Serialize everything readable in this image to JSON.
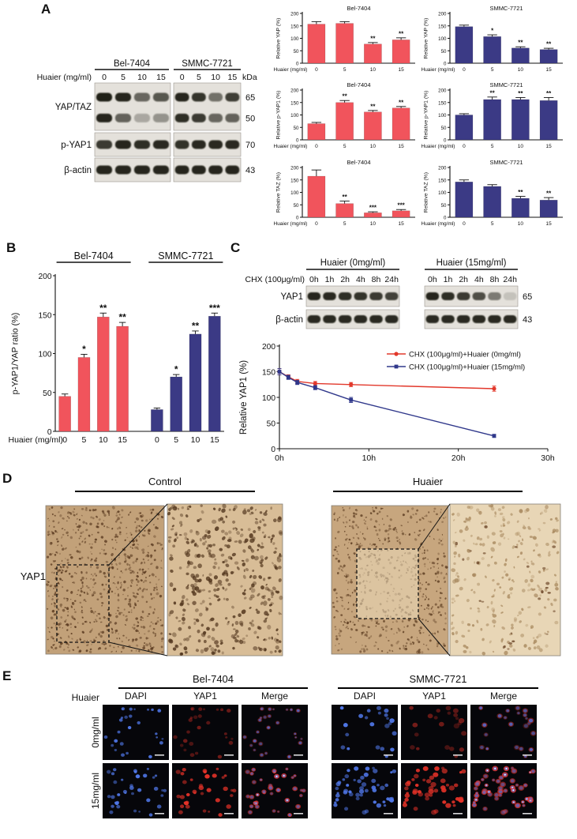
{
  "panels": {
    "a": "A",
    "b": "B",
    "c": "C",
    "d": "D",
    "e": "E"
  },
  "colors": {
    "bel_red": "#F1545C",
    "smmc_blue": "#3B3A85",
    "line_red": "#E2382B",
    "line_blue": "#30388B",
    "dapi_blue": "#5077E8",
    "yap1_red": "#E53228"
  },
  "panelA_blot": {
    "treatment_label": "Huaier (mg/ml)",
    "doses": [
      "0",
      "5",
      "10",
      "15"
    ],
    "kda_unit": "kDa",
    "groups": [
      "Bel-7404",
      "SMMC-7721"
    ],
    "rows": [
      {
        "label": "YAP/TAZ",
        "markers": [
          "65",
          "50"
        ],
        "bands": [
          {
            "g1": [
              0.95,
              0.92,
              0.6,
              0.68
            ],
            "g2": [
              0.92,
              0.85,
              0.55,
              0.8
            ]
          },
          {
            "g1": [
              0.92,
              0.62,
              0.28,
              0.38
            ],
            "g2": [
              0.88,
              0.82,
              0.6,
              0.62
            ]
          }
        ]
      },
      {
        "label": "p-YAP1",
        "markers": [
          "70"
        ],
        "bands": [
          {
            "g1": [
              0.82,
              0.92,
              0.88,
              0.9
            ],
            "g2": [
              0.86,
              0.9,
              0.9,
              0.9
            ]
          }
        ]
      },
      {
        "label": "β-actin",
        "markers": [
          "43"
        ],
        "bands": [
          {
            "g1": [
              0.92,
              0.92,
              0.92,
              0.92
            ],
            "g2": [
              0.92,
              0.92,
              0.92,
              0.92
            ]
          }
        ]
      }
    ]
  },
  "panelC_blot": {
    "chx_label": "CHX (100μg/ml)",
    "times": [
      "0h",
      "1h",
      "2h",
      "4h",
      "8h",
      "24h"
    ],
    "groups": [
      "Huaier (0mg/ml)",
      "Huaier (15mg/ml)"
    ],
    "rows": [
      {
        "label": "YAP1",
        "marker": "65",
        "g1": [
          0.92,
          0.9,
          0.88,
          0.85,
          0.82,
          0.78
        ],
        "g2": [
          0.92,
          0.88,
          0.82,
          0.72,
          0.5,
          0.15
        ]
      },
      {
        "label": "β-actin",
        "marker": "43",
        "g1": [
          0.9,
          0.9,
          0.9,
          0.9,
          0.9,
          0.9
        ],
        "g2": [
          0.9,
          0.9,
          0.9,
          0.9,
          0.9,
          0.9
        ]
      }
    ]
  },
  "panelD": {
    "col1": "Control",
    "col2": "Huaier",
    "row_label": "YAP1"
  },
  "panelE": {
    "group1": "Bel-7404",
    "group2": "SMMC-7721",
    "treatment_label": "Huaier",
    "channels": [
      "DAPI",
      "YAP1",
      "Merge"
    ],
    "row1": "0mg/ml",
    "row2": "15mg/ml"
  },
  "chart_data": [
    {
      "id": "a_yap_bel",
      "type": "bar",
      "title": "Bel-7404",
      "ylabel": "Relative YAP (%)",
      "xlabel": "Huaier (mg/ml)",
      "categories": [
        "0",
        "5",
        "10",
        "15"
      ],
      "values": [
        157,
        160,
        77,
        94
      ],
      "errors": [
        10,
        7,
        6,
        8
      ],
      "sig": [
        "",
        "",
        "**",
        "**"
      ],
      "color": "#F1545C",
      "ylim": [
        0,
        200
      ],
      "yticks": [
        0,
        50,
        100,
        150,
        200
      ]
    },
    {
      "id": "a_yap_smmc",
      "type": "bar",
      "title": "SMMC-7721",
      "ylabel": "Relative YAP (%)",
      "xlabel": "Huaier (mg/ml)",
      "categories": [
        "0",
        "5",
        "10",
        "15"
      ],
      "values": [
        147,
        107,
        61,
        55
      ],
      "errors": [
        6,
        7,
        5,
        5
      ],
      "sig": [
        "",
        "*",
        "**",
        "**"
      ],
      "color": "#3B3A85",
      "ylim": [
        0,
        200
      ],
      "yticks": [
        0,
        50,
        100,
        150,
        200
      ]
    },
    {
      "id": "a_pyap_bel",
      "type": "bar",
      "title": "Bel-7404",
      "ylabel": "Relative p-YAP1 (%)",
      "xlabel": "Huaier (mg/ml)",
      "categories": [
        "0",
        "5",
        "10",
        "15"
      ],
      "values": [
        65,
        150,
        112,
        128
      ],
      "errors": [
        5,
        8,
        6,
        6
      ],
      "sig": [
        "",
        "**",
        "**",
        "**"
      ],
      "color": "#F1545C",
      "ylim": [
        0,
        200
      ],
      "yticks": [
        0,
        50,
        100,
        150,
        200
      ]
    },
    {
      "id": "a_pyap_smmc",
      "type": "bar",
      "title": "SMMC-7721",
      "ylabel": "Relative p-YAP1 (%)",
      "xlabel": "Huaier (mg/ml)",
      "categories": [
        "0",
        "5",
        "10",
        "15"
      ],
      "values": [
        100,
        162,
        162,
        158
      ],
      "errors": [
        5,
        10,
        8,
        12
      ],
      "sig": [
        "",
        "**",
        "**",
        "**"
      ],
      "color": "#3B3A85",
      "ylim": [
        0,
        200
      ],
      "yticks": [
        0,
        50,
        100,
        150,
        200
      ]
    },
    {
      "id": "a_taz_bel",
      "type": "bar",
      "title": "Bel-7404",
      "ylabel": "Relative TAZ (%)",
      "xlabel": "Huaier (mg/ml)",
      "categories": [
        "0",
        "5",
        "10",
        "15"
      ],
      "values": [
        165,
        55,
        18,
        26
      ],
      "errors": [
        25,
        10,
        4,
        5
      ],
      "sig": [
        "",
        "**",
        "***",
        "***"
      ],
      "color": "#F1545C",
      "ylim": [
        0,
        200
      ],
      "yticks": [
        0,
        50,
        100,
        150,
        200
      ]
    },
    {
      "id": "a_taz_smmc",
      "type": "bar",
      "title": "SMMC-7721",
      "ylabel": "Relative TAZ (%)",
      "xlabel": "Huaier (mg/ml)",
      "categories": [
        "0",
        "5",
        "10",
        "15"
      ],
      "values": [
        142,
        124,
        76,
        69
      ],
      "errors": [
        8,
        7,
        8,
        10
      ],
      "sig": [
        "",
        "",
        "**",
        "**"
      ],
      "color": "#3B3A85",
      "ylim": [
        0,
        200
      ],
      "yticks": [
        0,
        50,
        100,
        150,
        200
      ]
    },
    {
      "id": "b_ratio",
      "type": "bar",
      "ylabel": "p-YAP1/YAP ratio (%)",
      "xlabel": "Huaier (mg/ml)",
      "ylim": [
        0,
        200
      ],
      "yticks": [
        0,
        50,
        100,
        150,
        200
      ],
      "groups": [
        {
          "label": "Bel-7404",
          "color": "#F1545C",
          "categories": [
            "0",
            "5",
            "10",
            "15"
          ],
          "values": [
            45,
            95,
            147,
            135
          ],
          "errors": [
            3,
            4,
            5,
            5
          ],
          "sig": [
            "",
            "*",
            "**",
            "**"
          ]
        },
        {
          "label": "SMMC-7721",
          "color": "#3B3A85",
          "categories": [
            "0",
            "5",
            "10",
            "15"
          ],
          "values": [
            28,
            70,
            125,
            148
          ],
          "errors": [
            2,
            3,
            4,
            4
          ],
          "sig": [
            "",
            "*",
            "**",
            "***"
          ]
        }
      ]
    },
    {
      "id": "c_decay",
      "type": "line",
      "ylabel": "Relative YAP1 (%)",
      "xlim": [
        0,
        30
      ],
      "ylim": [
        0,
        200
      ],
      "yticks": [
        0,
        50,
        100,
        150,
        200
      ],
      "xticks": [
        {
          "v": 0,
          "label": "0h"
        },
        {
          "v": 10,
          "label": "10h"
        },
        {
          "v": 20,
          "label": "20h"
        },
        {
          "v": 30,
          "label": "30h"
        }
      ],
      "series": [
        {
          "name": "CHX (100μg/ml)+Huaier (0mg/ml)",
          "color": "#E2382B",
          "marker": "circle",
          "x": [
            0,
            1,
            2,
            4,
            8,
            24
          ],
          "y": [
            150,
            140,
            131,
            127,
            125,
            117
          ],
          "errors": [
            6,
            4,
            4,
            4,
            4,
            5
          ]
        },
        {
          "name": "CHX (100μg/ml)+Huaier (15mg/ml)",
          "color": "#30388B",
          "marker": "square",
          "x": [
            0,
            1,
            2,
            4,
            8,
            24
          ],
          "y": [
            150,
            139,
            129,
            119,
            95,
            25
          ],
          "errors": [
            6,
            4,
            4,
            4,
            5,
            3
          ]
        }
      ]
    }
  ]
}
